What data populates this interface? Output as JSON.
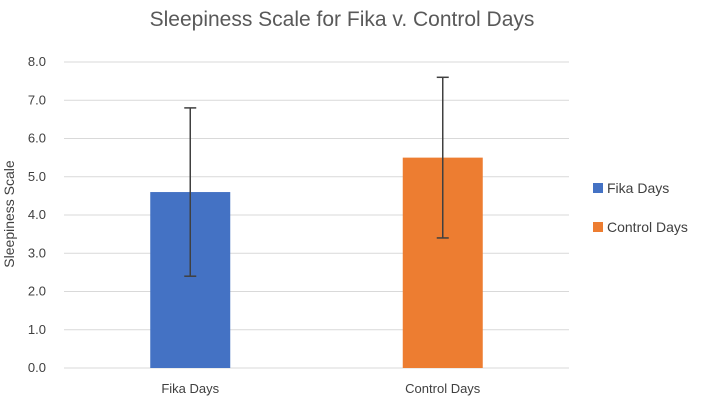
{
  "chart_data": {
    "type": "bar",
    "title": "Sleepiness  Scale for Fika v. Control Days",
    "xlabel": "",
    "ylabel": "Sleepiness Scale",
    "ylim": [
      0,
      8
    ],
    "yticks": [
      "0.0",
      "1.0",
      "2.0",
      "3.0",
      "4.0",
      "5.0",
      "6.0",
      "7.0",
      "8.0"
    ],
    "grid": true,
    "legend_position": "right",
    "categories": [
      "Fika Days",
      "Control Days"
    ],
    "series": [
      {
        "name": "Fika  Days",
        "category": "Fika Days",
        "value": 4.6,
        "error_low": 2.4,
        "error_high": 6.8,
        "color": "#4472C4"
      },
      {
        "name": "Control Days",
        "category": "Control Days",
        "value": 5.5,
        "error_low": 3.4,
        "error_high": 7.6,
        "color": "#ED7D31"
      }
    ]
  }
}
